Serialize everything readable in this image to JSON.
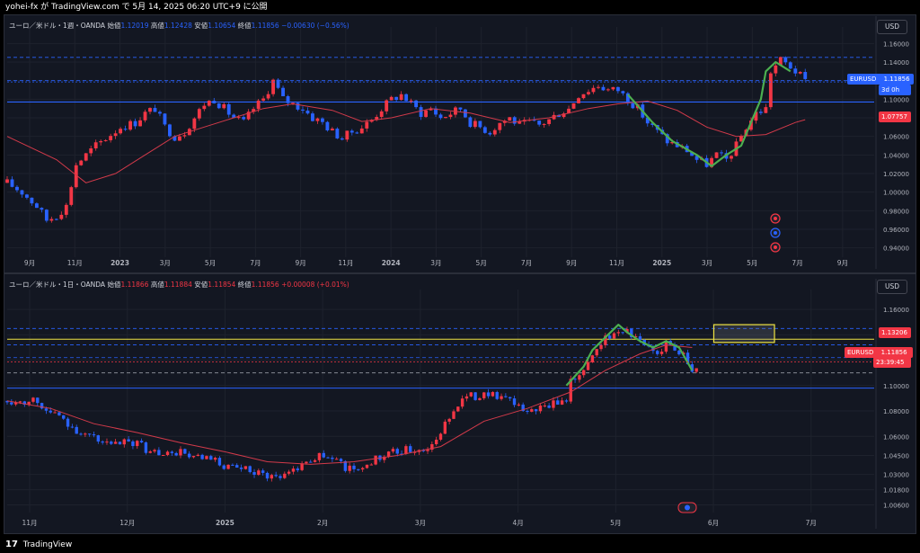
{
  "topbar": {
    "text": "yohei-fx が TradingView.com で 5月 14, 2025 06:20 UTC+9 に公開"
  },
  "footer": {
    "logo": "17",
    "brand": "TradingView"
  },
  "colors": {
    "background": "#131722",
    "up": "#f23645",
    "down": "#2962ff",
    "ma": "#d23a4a",
    "wave": "#4caf50",
    "hline": "#2962ff",
    "yellow": "#f0e442"
  },
  "weekly": {
    "legend": {
      "title": "ユーロ／米ドル・1週・OANDA",
      "open_label": "始値",
      "open": "1.12019",
      "high_label": "高値",
      "high": "1.12428",
      "low_label": "安値",
      "low": "1.10654",
      "close_label": "終値",
      "close": "1.11856",
      "change": "−0.00630 (−0.56%)"
    },
    "currency": "USD",
    "price_tag": {
      "symbol": "EURUSD",
      "value": "1.11856",
      "countdown": "3d 0h"
    },
    "level_tag": "1.07757",
    "icons": [
      "lightning-icon",
      "globe-icon",
      "flag-icon"
    ]
  },
  "daily": {
    "legend": {
      "title": "ユーロ／米ドル・1日・OANDA",
      "open_label": "始値",
      "open": "1.11866",
      "high_label": "高値",
      "high": "1.11884",
      "low_label": "安値",
      "low": "1.11854",
      "close_label": "終値",
      "close": "1.11856",
      "change": "+0.00008 (+0.01%)"
    },
    "currency": "USD",
    "price_tag": {
      "symbol": "EURUSD",
      "value": "1.11856",
      "countdown": "23:39:45"
    },
    "level_tag": "1.13206",
    "icons": [
      "calendar-flag-icon"
    ]
  },
  "chart_data": [
    {
      "type": "candlestick",
      "title": "ユーロ／米ドル・1週・OANDA",
      "x_ticks": [
        "9月",
        "11月",
        "2023",
        "3月",
        "5月",
        "7月",
        "9月",
        "11月",
        "2024",
        "3月",
        "5月",
        "7月",
        "9月",
        "11月",
        "2025",
        "3月",
        "5月",
        "7月",
        "9月"
      ],
      "y_ticks": [
        "1.16000",
        "1.14000",
        "1.12000",
        "1.10000",
        "1.08000",
        "1.06000",
        "1.04000",
        "1.02000",
        "1.00000",
        "0.98000",
        "0.96000",
        "0.94000"
      ],
      "ylim": [
        0.93,
        1.17
      ],
      "x_range": [
        0,
        176
      ],
      "close_path": [
        [
          0,
          1.01
        ],
        [
          3,
          1.0
        ],
        [
          6,
          0.985
        ],
        [
          8,
          0.97
        ],
        [
          10,
          0.975
        ],
        [
          12,
          0.985
        ],
        [
          14,
          1.03
        ],
        [
          16,
          1.04
        ],
        [
          18,
          1.05
        ],
        [
          20,
          1.058
        ],
        [
          23,
          1.07
        ],
        [
          26,
          1.075
        ],
        [
          28,
          1.085
        ],
        [
          30,
          1.09
        ],
        [
          32,
          1.07
        ],
        [
          34,
          1.06
        ],
        [
          36,
          1.065
        ],
        [
          38,
          1.08
        ],
        [
          40,
          1.095
        ],
        [
          42,
          1.1
        ],
        [
          44,
          1.09
        ],
        [
          46,
          1.08
        ],
        [
          48,
          1.075
        ],
        [
          50,
          1.09
        ],
        [
          52,
          1.1
        ],
        [
          54,
          1.12
        ],
        [
          56,
          1.1
        ],
        [
          58,
          1.095
        ],
        [
          60,
          1.09
        ],
        [
          62,
          1.08
        ],
        [
          64,
          1.075
        ],
        [
          66,
          1.065
        ],
        [
          68,
          1.058
        ],
        [
          70,
          1.065
        ],
        [
          72,
          1.07
        ],
        [
          74,
          1.078
        ],
        [
          76,
          1.09
        ],
        [
          78,
          1.1
        ],
        [
          80,
          1.105
        ],
        [
          82,
          1.095
        ],
        [
          84,
          1.085
        ],
        [
          86,
          1.09
        ],
        [
          88,
          1.08
        ],
        [
          90,
          1.085
        ],
        [
          92,
          1.09
        ],
        [
          94,
          1.075
        ],
        [
          96,
          1.07
        ],
        [
          98,
          1.065
        ],
        [
          100,
          1.075
        ],
        [
          102,
          1.08
        ],
        [
          104,
          1.072
        ],
        [
          106,
          1.075
        ],
        [
          108,
          1.072
        ],
        [
          110,
          1.078
        ],
        [
          112,
          1.085
        ],
        [
          114,
          1.09
        ],
        [
          116,
          1.105
        ],
        [
          118,
          1.11
        ],
        [
          120,
          1.115
        ],
        [
          122,
          1.11
        ],
        [
          124,
          1.11
        ],
        [
          126,
          1.1
        ],
        [
          128,
          1.09
        ],
        [
          130,
          1.075
        ],
        [
          132,
          1.065
        ],
        [
          134,
          1.055
        ],
        [
          136,
          1.05
        ],
        [
          138,
          1.045
        ],
        [
          140,
          1.035
        ],
        [
          142,
          1.03
        ],
        [
          144,
          1.04
        ],
        [
          146,
          1.035
        ],
        [
          148,
          1.05
        ],
        [
          150,
          1.07
        ],
        [
          152,
          1.085
        ],
        [
          154,
          1.09
        ],
        [
          155,
          1.13
        ],
        [
          157,
          1.142
        ],
        [
          159,
          1.135
        ],
        [
          161,
          1.125
        ],
        [
          162,
          1.119
        ]
      ],
      "moving_average": [
        [
          0,
          1.06
        ],
        [
          10,
          1.035
        ],
        [
          16,
          1.01
        ],
        [
          22,
          1.02
        ],
        [
          28,
          1.04
        ],
        [
          34,
          1.06
        ],
        [
          40,
          1.07
        ],
        [
          46,
          1.08
        ],
        [
          52,
          1.09
        ],
        [
          58,
          1.095
        ],
        [
          66,
          1.088
        ],
        [
          72,
          1.076
        ],
        [
          78,
          1.08
        ],
        [
          86,
          1.09
        ],
        [
          94,
          1.085
        ],
        [
          102,
          1.075
        ],
        [
          110,
          1.08
        ],
        [
          118,
          1.09
        ],
        [
          124,
          1.095
        ],
        [
          130,
          1.098
        ],
        [
          136,
          1.088
        ],
        [
          142,
          1.07
        ],
        [
          148,
          1.06
        ],
        [
          154,
          1.062
        ],
        [
          160,
          1.075
        ],
        [
          162,
          1.078
        ]
      ],
      "wave_path": [
        [
          126,
          1.105
        ],
        [
          131,
          1.075
        ],
        [
          135,
          1.055
        ],
        [
          140,
          1.04
        ],
        [
          143,
          1.028
        ],
        [
          146,
          1.04
        ],
        [
          149,
          1.05
        ],
        [
          151,
          1.075
        ],
        [
          153,
          1.1
        ],
        [
          154,
          1.13
        ],
        [
          156,
          1.14
        ],
        [
          159,
          1.13
        ]
      ],
      "horizontal_lines": [
        1.145,
        1.12,
        1.097
      ],
      "ma_label": "1.07757",
      "last_price": 1.11856
    },
    {
      "type": "candlestick",
      "title": "ユーロ／米ドル・1日・OANDA",
      "x_ticks": [
        "11月",
        "12月",
        "2025",
        "2月",
        "3月",
        "4月",
        "5月",
        "6月",
        "7月"
      ],
      "y_ticks": [
        "1.16000",
        "1.14000",
        "1.12000",
        "1.10000",
        "1.08000",
        "1.06000",
        "1.04500",
        "1.03000",
        "1.01800",
        "1.00600"
      ],
      "ylim": [
        1.0,
        1.17
      ],
      "x_range": [
        0,
        200
      ],
      "close_path": [
        [
          0,
          1.088
        ],
        [
          3,
          1.087
        ],
        [
          6,
          1.09
        ],
        [
          9,
          1.08
        ],
        [
          12,
          1.075
        ],
        [
          15,
          1.068
        ],
        [
          18,
          1.06
        ],
        [
          21,
          1.058
        ],
        [
          24,
          1.052
        ],
        [
          27,
          1.055
        ],
        [
          30,
          1.055
        ],
        [
          33,
          1.048
        ],
        [
          36,
          1.045
        ],
        [
          39,
          1.048
        ],
        [
          42,
          1.045
        ],
        [
          45,
          1.042
        ],
        [
          48,
          1.04
        ],
        [
          51,
          1.035
        ],
        [
          54,
          1.034
        ],
        [
          57,
          1.032
        ],
        [
          60,
          1.03
        ],
        [
          63,
          1.028
        ],
        [
          66,
          1.035
        ],
        [
          69,
          1.04
        ],
        [
          72,
          1.045
        ],
        [
          75,
          1.042
        ],
        [
          78,
          1.036
        ],
        [
          81,
          1.034
        ],
        [
          84,
          1.04
        ],
        [
          87,
          1.045
        ],
        [
          90,
          1.048
        ],
        [
          93,
          1.05
        ],
        [
          96,
          1.05
        ],
        [
          99,
          1.055
        ],
        [
          101,
          1.07
        ],
        [
          103,
          1.082
        ],
        [
          105,
          1.09
        ],
        [
          108,
          1.092
        ],
        [
          111,
          1.095
        ],
        [
          114,
          1.09
        ],
        [
          117,
          1.085
        ],
        [
          120,
          1.08
        ],
        [
          123,
          1.082
        ],
        [
          126,
          1.085
        ],
        [
          129,
          1.09
        ],
        [
          130,
          1.105
        ],
        [
          133,
          1.11
        ],
        [
          135,
          1.125
        ],
        [
          137,
          1.135
        ],
        [
          140,
          1.14
        ],
        [
          142,
          1.145
        ],
        [
          144,
          1.14
        ],
        [
          146,
          1.135
        ],
        [
          148,
          1.13
        ],
        [
          150,
          1.125
        ],
        [
          152,
          1.135
        ],
        [
          154,
          1.13
        ],
        [
          156,
          1.125
        ],
        [
          158,
          1.112
        ],
        [
          159,
          1.115
        ]
      ],
      "moving_average": [
        [
          0,
          1.088
        ],
        [
          10,
          1.082
        ],
        [
          20,
          1.07
        ],
        [
          30,
          1.063
        ],
        [
          40,
          1.055
        ],
        [
          50,
          1.048
        ],
        [
          60,
          1.04
        ],
        [
          70,
          1.038
        ],
        [
          80,
          1.04
        ],
        [
          90,
          1.045
        ],
        [
          100,
          1.052
        ],
        [
          110,
          1.072
        ],
        [
          120,
          1.082
        ],
        [
          130,
          1.095
        ],
        [
          138,
          1.112
        ],
        [
          146,
          1.125
        ],
        [
          152,
          1.132
        ],
        [
          158,
          1.13
        ]
      ],
      "wave_path": [
        [
          129,
          1.1
        ],
        [
          133,
          1.115
        ],
        [
          135,
          1.128
        ],
        [
          138,
          1.138
        ],
        [
          141,
          1.148
        ],
        [
          143,
          1.142
        ],
        [
          146,
          1.135
        ],
        [
          149,
          1.13
        ],
        [
          152,
          1.135
        ],
        [
          155,
          1.13
        ],
        [
          158,
          1.112
        ]
      ],
      "horizontal_lines_dashed": [
        1.145,
        1.13206,
        1.122,
        1.11
      ],
      "horizontal_lines_solid": [
        1.098
      ],
      "yellow_line": 1.1365,
      "highlight_zone": {
        "x_from": 163,
        "x_to": 177,
        "y_from": 1.134,
        "y_to": 1.148
      },
      "ma_label": "1.13206",
      "last_price": 1.11856
    }
  ]
}
